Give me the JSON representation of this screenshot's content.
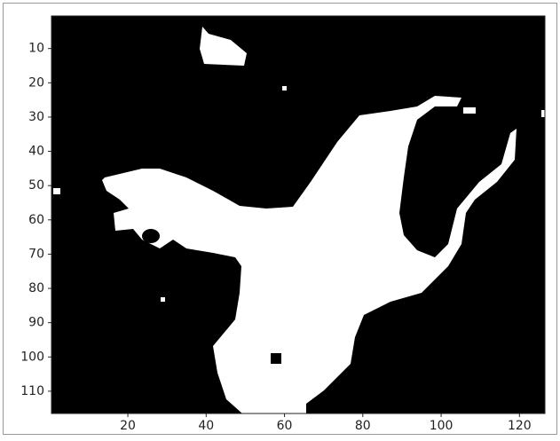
{
  "chart_data": {
    "type": "image",
    "xlim": [
      0.5,
      126.5
    ],
    "xticks": [
      20,
      40,
      60,
      80,
      100,
      120
    ],
    "ylim": [
      116.5,
      0.5
    ],
    "yticks": [
      10,
      20,
      30,
      40,
      50,
      60,
      70,
      80,
      90,
      100,
      110
    ]
  }
}
